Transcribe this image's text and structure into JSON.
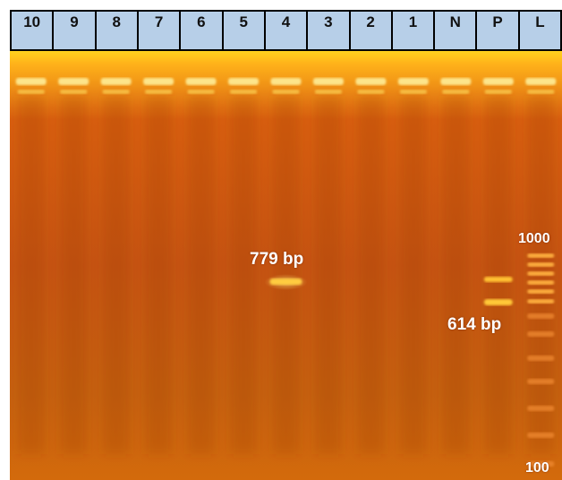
{
  "lanes": [
    "10",
    "9",
    "8",
    "7",
    "6",
    "5",
    "4",
    "3",
    "2",
    "1",
    "N",
    "P",
    "L"
  ],
  "annotations": {
    "band_lane4": "779 bp",
    "band_positive": "614 bp",
    "ladder_top": "1000",
    "ladder_bottom": "100"
  },
  "colors": {
    "header_fill": "#b7cfe8",
    "gel_top": "#ffd21e",
    "gel_body": "#c85410",
    "band": "#ffcc40",
    "label_text": "#ffffff"
  }
}
